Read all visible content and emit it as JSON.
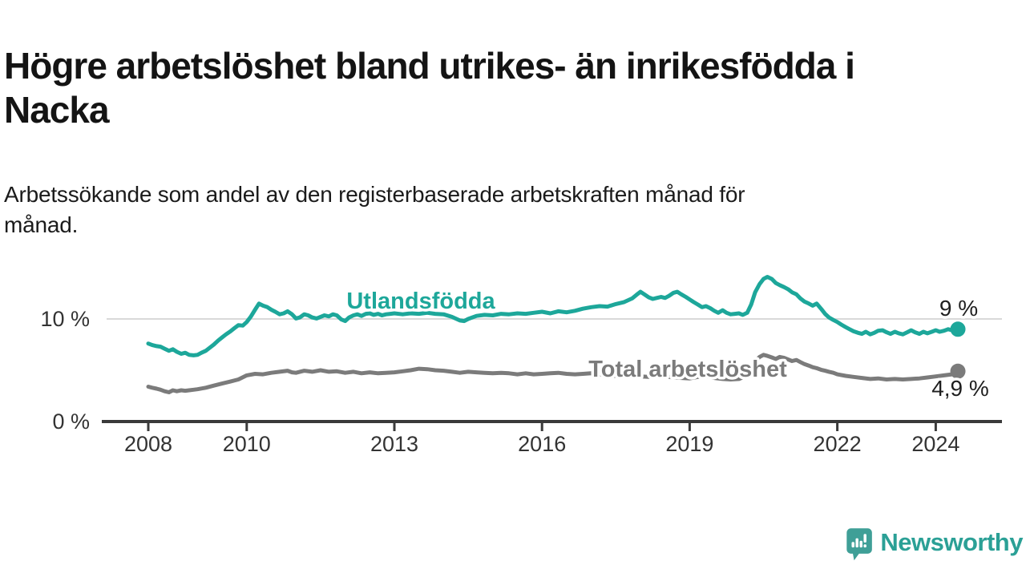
{
  "header": {
    "title_lines": [
      "Högre arbetslöshet bland utrikes- än inrikesfödda i",
      "Nacka"
    ],
    "subtitle_lines": [
      "Arbetssökande som andel av den registerbaserade arbetskraften månad för",
      "månad."
    ]
  },
  "branding": {
    "logo_text": "Newsworthy",
    "logo_icon": "speech-bubble-bar-chart-icon",
    "logo_color": "#2ba096"
  },
  "colors": {
    "accent_teal": "#1da79a",
    "line_gray": "#7b7b7b",
    "axis": "#3a3a3a",
    "gridline": "#d9d9d9",
    "text_dark": "#141414"
  },
  "chart_data": {
    "type": "line",
    "title": "Högre arbetslöshet bland utrikes- än inrikesfödda i Nacka",
    "subtitle": "Arbetssökande som andel av den registerbaserade arbetskraften månad för månad.",
    "unit": "%",
    "xlim": [
      2007.6,
      2025.1
    ],
    "ylim": [
      0,
      15
    ],
    "grid": "horizontal-10-only",
    "legend_position": "inline-annotations",
    "x_ticks": [
      {
        "year": 2008,
        "label": "2008"
      },
      {
        "year": 2010,
        "label": "2010"
      },
      {
        "year": 2013,
        "label": "2013"
      },
      {
        "year": 2016,
        "label": "2016"
      },
      {
        "year": 2019,
        "label": "2019"
      },
      {
        "year": 2022,
        "label": "2022"
      },
      {
        "year": 2024,
        "label": "2024"
      }
    ],
    "y_ticks": [
      {
        "value": 0,
        "label": "0 %"
      },
      {
        "value": 10,
        "label": "10 %"
      }
    ],
    "series": [
      {
        "name": "Utlandsfödda",
        "color": "#1da79a",
        "end_label": "9 %",
        "end_value": 9.0,
        "points": [
          [
            2008.0,
            7.6
          ],
          [
            2008.08,
            7.45
          ],
          [
            2008.17,
            7.35
          ],
          [
            2008.25,
            7.3
          ],
          [
            2008.33,
            7.1
          ],
          [
            2008.42,
            6.9
          ],
          [
            2008.5,
            7.05
          ],
          [
            2008.58,
            6.8
          ],
          [
            2008.67,
            6.6
          ],
          [
            2008.75,
            6.7
          ],
          [
            2008.83,
            6.5
          ],
          [
            2008.92,
            6.45
          ],
          [
            2009.0,
            6.5
          ],
          [
            2009.08,
            6.7
          ],
          [
            2009.17,
            6.9
          ],
          [
            2009.25,
            7.2
          ],
          [
            2009.33,
            7.5
          ],
          [
            2009.42,
            7.9
          ],
          [
            2009.5,
            8.2
          ],
          [
            2009.58,
            8.5
          ],
          [
            2009.67,
            8.8
          ],
          [
            2009.75,
            9.1
          ],
          [
            2009.83,
            9.4
          ],
          [
            2009.92,
            9.35
          ],
          [
            2010.0,
            9.7
          ],
          [
            2010.08,
            10.2
          ],
          [
            2010.17,
            10.9
          ],
          [
            2010.25,
            11.5
          ],
          [
            2010.33,
            11.3
          ],
          [
            2010.42,
            11.15
          ],
          [
            2010.5,
            10.9
          ],
          [
            2010.58,
            10.7
          ],
          [
            2010.67,
            10.45
          ],
          [
            2010.75,
            10.55
          ],
          [
            2010.83,
            10.75
          ],
          [
            2010.92,
            10.45
          ],
          [
            2011.0,
            10.05
          ],
          [
            2011.08,
            10.15
          ],
          [
            2011.17,
            10.45
          ],
          [
            2011.25,
            10.35
          ],
          [
            2011.33,
            10.15
          ],
          [
            2011.42,
            10.05
          ],
          [
            2011.5,
            10.2
          ],
          [
            2011.58,
            10.35
          ],
          [
            2011.67,
            10.25
          ],
          [
            2011.75,
            10.45
          ],
          [
            2011.83,
            10.35
          ],
          [
            2011.92,
            9.95
          ],
          [
            2012.0,
            9.8
          ],
          [
            2012.08,
            10.15
          ],
          [
            2012.17,
            10.35
          ],
          [
            2012.25,
            10.45
          ],
          [
            2012.33,
            10.3
          ],
          [
            2012.42,
            10.5
          ],
          [
            2012.5,
            10.55
          ],
          [
            2012.58,
            10.4
          ],
          [
            2012.67,
            10.5
          ],
          [
            2012.75,
            10.35
          ],
          [
            2012.83,
            10.45
          ],
          [
            2012.92,
            10.5
          ],
          [
            2013.0,
            10.55
          ],
          [
            2013.17,
            10.45
          ],
          [
            2013.33,
            10.55
          ],
          [
            2013.5,
            10.5
          ],
          [
            2013.67,
            10.6
          ],
          [
            2013.83,
            10.5
          ],
          [
            2014.0,
            10.45
          ],
          [
            2014.17,
            10.2
          ],
          [
            2014.33,
            9.85
          ],
          [
            2014.42,
            9.8
          ],
          [
            2014.5,
            10.0
          ],
          [
            2014.67,
            10.3
          ],
          [
            2014.83,
            10.4
          ],
          [
            2015.0,
            10.35
          ],
          [
            2015.17,
            10.5
          ],
          [
            2015.33,
            10.45
          ],
          [
            2015.5,
            10.55
          ],
          [
            2015.67,
            10.5
          ],
          [
            2015.83,
            10.6
          ],
          [
            2016.0,
            10.7
          ],
          [
            2016.17,
            10.55
          ],
          [
            2016.33,
            10.75
          ],
          [
            2016.5,
            10.65
          ],
          [
            2016.67,
            10.8
          ],
          [
            2016.83,
            11.0
          ],
          [
            2017.0,
            11.15
          ],
          [
            2017.17,
            11.25
          ],
          [
            2017.33,
            11.2
          ],
          [
            2017.5,
            11.45
          ],
          [
            2017.67,
            11.65
          ],
          [
            2017.83,
            12.0
          ],
          [
            2017.92,
            12.35
          ],
          [
            2018.0,
            12.65
          ],
          [
            2018.08,
            12.4
          ],
          [
            2018.17,
            12.1
          ],
          [
            2018.25,
            11.95
          ],
          [
            2018.33,
            12.05
          ],
          [
            2018.42,
            12.15
          ],
          [
            2018.5,
            12.05
          ],
          [
            2018.58,
            12.25
          ],
          [
            2018.67,
            12.55
          ],
          [
            2018.75,
            12.65
          ],
          [
            2018.83,
            12.4
          ],
          [
            2018.92,
            12.15
          ],
          [
            2019.0,
            11.9
          ],
          [
            2019.08,
            11.65
          ],
          [
            2019.17,
            11.4
          ],
          [
            2019.25,
            11.15
          ],
          [
            2019.33,
            11.25
          ],
          [
            2019.42,
            11.05
          ],
          [
            2019.5,
            10.8
          ],
          [
            2019.58,
            10.6
          ],
          [
            2019.67,
            10.85
          ],
          [
            2019.75,
            10.6
          ],
          [
            2019.83,
            10.45
          ],
          [
            2019.92,
            10.5
          ],
          [
            2020.0,
            10.55
          ],
          [
            2020.08,
            10.4
          ],
          [
            2020.17,
            10.6
          ],
          [
            2020.25,
            11.4
          ],
          [
            2020.33,
            12.6
          ],
          [
            2020.42,
            13.4
          ],
          [
            2020.5,
            13.9
          ],
          [
            2020.58,
            14.1
          ],
          [
            2020.67,
            13.9
          ],
          [
            2020.75,
            13.5
          ],
          [
            2020.83,
            13.3
          ],
          [
            2020.92,
            13.1
          ],
          [
            2021.0,
            12.9
          ],
          [
            2021.08,
            12.6
          ],
          [
            2021.17,
            12.4
          ],
          [
            2021.25,
            12.0
          ],
          [
            2021.33,
            11.7
          ],
          [
            2021.42,
            11.5
          ],
          [
            2021.5,
            11.3
          ],
          [
            2021.58,
            11.5
          ],
          [
            2021.67,
            11.0
          ],
          [
            2021.75,
            10.5
          ],
          [
            2021.83,
            10.15
          ],
          [
            2021.92,
            9.9
          ],
          [
            2022.0,
            9.7
          ],
          [
            2022.08,
            9.45
          ],
          [
            2022.17,
            9.2
          ],
          [
            2022.25,
            9.0
          ],
          [
            2022.33,
            8.8
          ],
          [
            2022.42,
            8.65
          ],
          [
            2022.5,
            8.55
          ],
          [
            2022.58,
            8.75
          ],
          [
            2022.67,
            8.5
          ],
          [
            2022.75,
            8.65
          ],
          [
            2022.83,
            8.85
          ],
          [
            2022.92,
            8.9
          ],
          [
            2023.0,
            8.7
          ],
          [
            2023.08,
            8.55
          ],
          [
            2023.17,
            8.75
          ],
          [
            2023.25,
            8.6
          ],
          [
            2023.33,
            8.5
          ],
          [
            2023.42,
            8.7
          ],
          [
            2023.5,
            8.9
          ],
          [
            2023.58,
            8.7
          ],
          [
            2023.67,
            8.55
          ],
          [
            2023.75,
            8.75
          ],
          [
            2023.83,
            8.6
          ],
          [
            2023.92,
            8.75
          ],
          [
            2024.0,
            8.9
          ],
          [
            2024.08,
            8.75
          ],
          [
            2024.17,
            8.85
          ],
          [
            2024.25,
            9.0
          ],
          [
            2024.33,
            8.9
          ],
          [
            2024.45,
            9.0
          ]
        ]
      },
      {
        "name": "Total arbetslöshet",
        "color": "#7b7b7b",
        "end_label": "4,9 %",
        "end_value": 4.9,
        "points": [
          [
            2008.0,
            3.4
          ],
          [
            2008.08,
            3.3
          ],
          [
            2008.17,
            3.2
          ],
          [
            2008.25,
            3.1
          ],
          [
            2008.33,
            2.95
          ],
          [
            2008.42,
            2.85
          ],
          [
            2008.5,
            3.05
          ],
          [
            2008.58,
            2.95
          ],
          [
            2008.67,
            3.05
          ],
          [
            2008.75,
            3.0
          ],
          [
            2008.83,
            3.05
          ],
          [
            2008.92,
            3.1
          ],
          [
            2009.0,
            3.15
          ],
          [
            2009.17,
            3.3
          ],
          [
            2009.33,
            3.5
          ],
          [
            2009.5,
            3.7
          ],
          [
            2009.67,
            3.9
          ],
          [
            2009.83,
            4.1
          ],
          [
            2010.0,
            4.5
          ],
          [
            2010.17,
            4.65
          ],
          [
            2010.33,
            4.6
          ],
          [
            2010.5,
            4.75
          ],
          [
            2010.67,
            4.85
          ],
          [
            2010.83,
            4.95
          ],
          [
            2010.92,
            4.8
          ],
          [
            2011.0,
            4.75
          ],
          [
            2011.17,
            4.95
          ],
          [
            2011.33,
            4.85
          ],
          [
            2011.5,
            5.0
          ],
          [
            2011.67,
            4.85
          ],
          [
            2011.83,
            4.9
          ],
          [
            2012.0,
            4.75
          ],
          [
            2012.17,
            4.85
          ],
          [
            2012.33,
            4.7
          ],
          [
            2012.5,
            4.8
          ],
          [
            2012.67,
            4.7
          ],
          [
            2012.83,
            4.75
          ],
          [
            2013.0,
            4.8
          ],
          [
            2013.17,
            4.9
          ],
          [
            2013.33,
            5.0
          ],
          [
            2013.5,
            5.15
          ],
          [
            2013.67,
            5.1
          ],
          [
            2013.83,
            5.0
          ],
          [
            2014.0,
            4.95
          ],
          [
            2014.17,
            4.85
          ],
          [
            2014.33,
            4.75
          ],
          [
            2014.5,
            4.85
          ],
          [
            2014.67,
            4.8
          ],
          [
            2014.83,
            4.75
          ],
          [
            2015.0,
            4.7
          ],
          [
            2015.17,
            4.75
          ],
          [
            2015.33,
            4.7
          ],
          [
            2015.5,
            4.6
          ],
          [
            2015.67,
            4.7
          ],
          [
            2015.83,
            4.6
          ],
          [
            2016.0,
            4.65
          ],
          [
            2016.17,
            4.7
          ],
          [
            2016.33,
            4.75
          ],
          [
            2016.5,
            4.65
          ],
          [
            2016.67,
            4.6
          ],
          [
            2016.83,
            4.65
          ],
          [
            2017.0,
            4.7
          ],
          [
            2017.17,
            4.6
          ],
          [
            2017.33,
            4.5
          ],
          [
            2017.5,
            4.45
          ],
          [
            2017.67,
            4.5
          ],
          [
            2017.83,
            4.45
          ],
          [
            2018.0,
            4.4
          ],
          [
            2018.17,
            4.35
          ],
          [
            2018.33,
            4.45
          ],
          [
            2018.5,
            4.4
          ],
          [
            2018.67,
            4.3
          ],
          [
            2018.83,
            4.25
          ],
          [
            2019.0,
            4.2
          ],
          [
            2019.17,
            4.35
          ],
          [
            2019.33,
            4.4
          ],
          [
            2019.5,
            4.25
          ],
          [
            2019.67,
            4.15
          ],
          [
            2019.83,
            4.1
          ],
          [
            2020.0,
            4.15
          ],
          [
            2020.17,
            4.5
          ],
          [
            2020.25,
            5.2
          ],
          [
            2020.33,
            5.9
          ],
          [
            2020.42,
            6.3
          ],
          [
            2020.5,
            6.5
          ],
          [
            2020.58,
            6.4
          ],
          [
            2020.67,
            6.25
          ],
          [
            2020.75,
            6.1
          ],
          [
            2020.83,
            6.3
          ],
          [
            2020.92,
            6.2
          ],
          [
            2021.0,
            6.05
          ],
          [
            2021.08,
            5.9
          ],
          [
            2021.17,
            6.0
          ],
          [
            2021.25,
            5.8
          ],
          [
            2021.33,
            5.6
          ],
          [
            2021.42,
            5.45
          ],
          [
            2021.5,
            5.3
          ],
          [
            2021.58,
            5.2
          ],
          [
            2021.67,
            5.05
          ],
          [
            2021.75,
            4.95
          ],
          [
            2021.83,
            4.85
          ],
          [
            2021.92,
            4.75
          ],
          [
            2022.0,
            4.6
          ],
          [
            2022.17,
            4.45
          ],
          [
            2022.33,
            4.35
          ],
          [
            2022.5,
            4.25
          ],
          [
            2022.67,
            4.15
          ],
          [
            2022.83,
            4.2
          ],
          [
            2023.0,
            4.1
          ],
          [
            2023.17,
            4.15
          ],
          [
            2023.33,
            4.1
          ],
          [
            2023.5,
            4.15
          ],
          [
            2023.67,
            4.2
          ],
          [
            2023.83,
            4.3
          ],
          [
            2024.0,
            4.4
          ],
          [
            2024.17,
            4.5
          ],
          [
            2024.33,
            4.6
          ],
          [
            2024.45,
            4.9
          ]
        ]
      }
    ]
  }
}
